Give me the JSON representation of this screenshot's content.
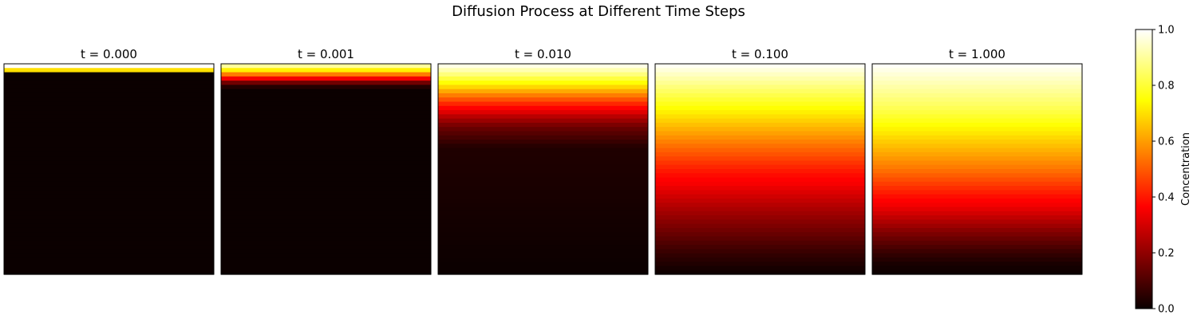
{
  "chart_data": {
    "type": "heatmap",
    "title": "Diffusion Process at Different Time Steps",
    "colormap": "hot",
    "grid": false,
    "rows": 50,
    "panels": [
      {
        "title": "t = 0.000",
        "profile": {
          "depth": [
            0,
            0.02,
            0.021,
            0.04,
            0.041,
            1.0
          ],
          "value": [
            1.0,
            1.0,
            0.7,
            0.7,
            0.0,
            0.0
          ]
        }
      },
      {
        "title": "t = 0.001",
        "profile": {
          "depth": [
            0,
            0.02,
            0.04,
            0.06,
            0.08,
            0.1,
            0.12,
            1.0
          ],
          "value": [
            1.0,
            0.8,
            0.65,
            0.45,
            0.22,
            0.07,
            0.0,
            0.0
          ]
        }
      },
      {
        "title": "t = 0.010",
        "profile": {
          "depth": [
            0,
            0.05,
            0.1,
            0.15,
            0.2,
            0.25,
            0.3,
            0.4,
            1.0
          ],
          "value": [
            1.0,
            0.87,
            0.72,
            0.55,
            0.39,
            0.25,
            0.14,
            0.03,
            0.0
          ]
        }
      },
      {
        "title": "t = 0.100",
        "profile": {
          "depth": [
            0,
            0.1,
            0.2,
            0.3,
            0.4,
            0.5,
            0.6,
            0.7,
            0.8,
            0.9,
            1.0
          ],
          "value": [
            1.0,
            0.88,
            0.76,
            0.64,
            0.52,
            0.41,
            0.31,
            0.22,
            0.14,
            0.06,
            0.0
          ]
        }
      },
      {
        "title": "t = 1.000",
        "profile": {
          "depth": [
            0,
            0.1,
            0.2,
            0.3,
            0.4,
            0.5,
            0.6,
            0.7,
            0.8,
            0.9,
            0.95,
            1.0
          ],
          "value": [
            1.0,
            0.92,
            0.84,
            0.74,
            0.64,
            0.54,
            0.42,
            0.3,
            0.17,
            0.06,
            0.02,
            0.0
          ]
        }
      }
    ],
    "colorbar": {
      "label": "Concentration",
      "ticks": [
        "0.0",
        "0.2",
        "0.4",
        "0.6",
        "0.8",
        "1.0"
      ],
      "range": [
        0,
        1
      ]
    }
  }
}
